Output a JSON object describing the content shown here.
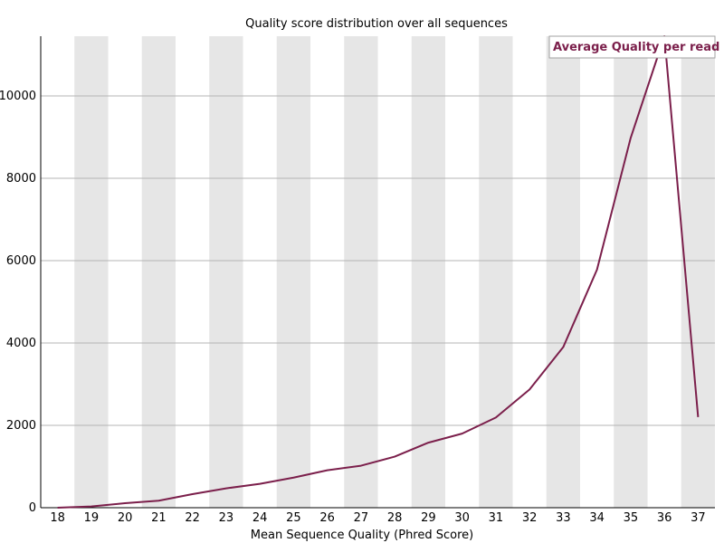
{
  "chart_data": {
    "type": "line",
    "title": "Quality score distribution over all sequences",
    "xlabel": "Mean Sequence Quality (Phred Score)",
    "ylabel": "",
    "x": [
      18,
      19,
      20,
      21,
      22,
      23,
      24,
      25,
      26,
      27,
      28,
      29,
      30,
      31,
      32,
      33,
      34,
      35,
      36,
      37
    ],
    "ylim": [
      0,
      11450
    ],
    "yticks": [
      0,
      2000,
      4000,
      6000,
      8000,
      10000
    ],
    "grid": true,
    "legend_position": "top-right",
    "series": [
      {
        "name": "Average Quality per read",
        "color": "#7b1f4b",
        "values": [
          0,
          30,
          110,
          170,
          330,
          470,
          580,
          730,
          910,
          1020,
          1240,
          1580,
          1800,
          2190,
          2870,
          3900,
          5780,
          8980,
          11450,
          2200
        ]
      }
    ]
  }
}
